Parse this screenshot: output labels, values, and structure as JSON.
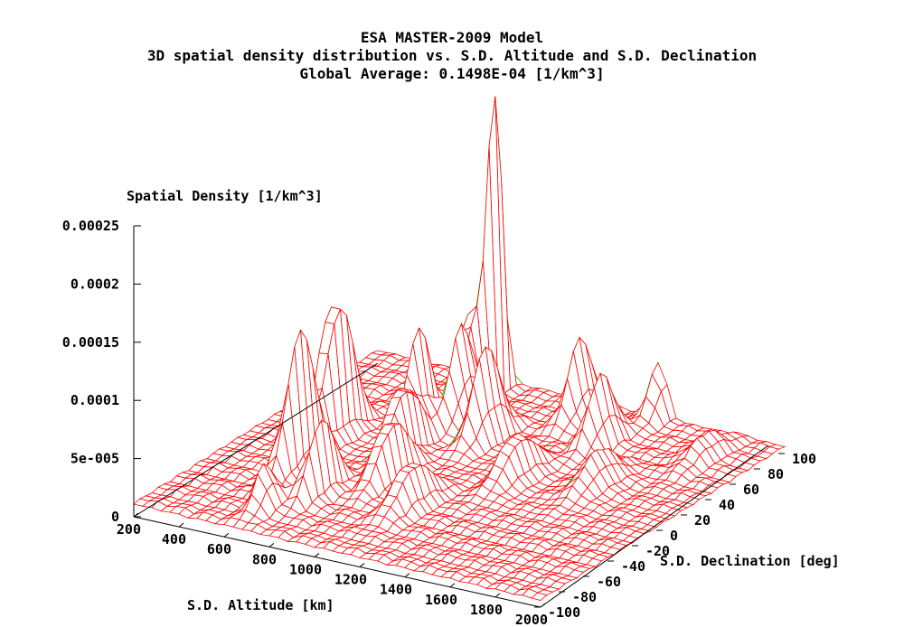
{
  "chart_data": {
    "type": "surface3d",
    "title": "ESA MASTER-2009 Model",
    "subtitle": "3D spatial density distribution vs. S.D. Altitude and S.D. Declination",
    "subtitle2": "Global Average: 0.1498E-04 [1/km^3]",
    "zlabel": "Spatial Density [1/km^3]",
    "xlabel": "S.D. Altitude [km]",
    "ylabel": "S.D. Declination [deg]",
    "xlim": [
      200,
      2000
    ],
    "ylim": [
      -100,
      100
    ],
    "zlim": [
      0,
      0.00025
    ],
    "x_ticks": [
      "200",
      "400",
      "600",
      "800",
      "1000",
      "1200",
      "1400",
      "1600",
      "1800",
      "2000"
    ],
    "y_ticks": [
      "-100",
      "-80",
      "-60",
      "-40",
      "-20",
      "0",
      "20",
      "40",
      "60",
      "80",
      "100"
    ],
    "z_ticks": [
      "0",
      "5e-005",
      "0.0001",
      "0.00015",
      "0.0002",
      "0.00025"
    ],
    "grid": false,
    "surface_color": "#ff0000",
    "underside_color": "#00cc00",
    "peaks": [
      {
        "x": 500,
        "y": 10,
        "z": 0.00014,
        "sx": 40,
        "sy": 16
      },
      {
        "x": 550,
        "y": -30,
        "z": 0.00013,
        "sx": 35,
        "sy": 16
      },
      {
        "x": 800,
        "y": 85,
        "z": 0.00026,
        "sx": 18,
        "sy": 8
      },
      {
        "x": 780,
        "y": 70,
        "z": 0.00012,
        "sx": 30,
        "sy": 12
      },
      {
        "x": 760,
        "y": 30,
        "z": 9e-05,
        "sx": 35,
        "sy": 14
      },
      {
        "x": 850,
        "y": 50,
        "z": 9e-05,
        "sx": 35,
        "sy": 14
      },
      {
        "x": 820,
        "y": 5,
        "z": 7e-05,
        "sx": 40,
        "sy": 18
      },
      {
        "x": 900,
        "y": -20,
        "z": 6e-05,
        "sx": 40,
        "sy": 18
      },
      {
        "x": 750,
        "y": -50,
        "z": 7e-05,
        "sx": 35,
        "sy": 16
      },
      {
        "x": 1000,
        "y": 40,
        "z": 8e-05,
        "sx": 40,
        "sy": 16
      },
      {
        "x": 1200,
        "y": 80,
        "z": 7e-05,
        "sx": 40,
        "sy": 14
      },
      {
        "x": 1400,
        "y": 60,
        "z": 6e-05,
        "sx": 45,
        "sy": 15
      },
      {
        "x": 1450,
        "y": 100,
        "z": 5e-05,
        "sx": 40,
        "sy": 12
      },
      {
        "x": 650,
        "y": -75,
        "z": 4e-05,
        "sx": 40,
        "sy": 12
      },
      {
        "x": 1600,
        "y": 20,
        "z": 3e-05,
        "sx": 60,
        "sy": 20
      },
      {
        "x": 1800,
        "y": 70,
        "z": 2e-05,
        "sx": 60,
        "sy": 20
      },
      {
        "x": 1100,
        "y": -40,
        "z": 4e-05,
        "sx": 50,
        "sy": 20
      },
      {
        "x": 1300,
        "y": 10,
        "z": 4e-05,
        "sx": 50,
        "sy": 20
      }
    ],
    "background_level": 1e-05
  }
}
